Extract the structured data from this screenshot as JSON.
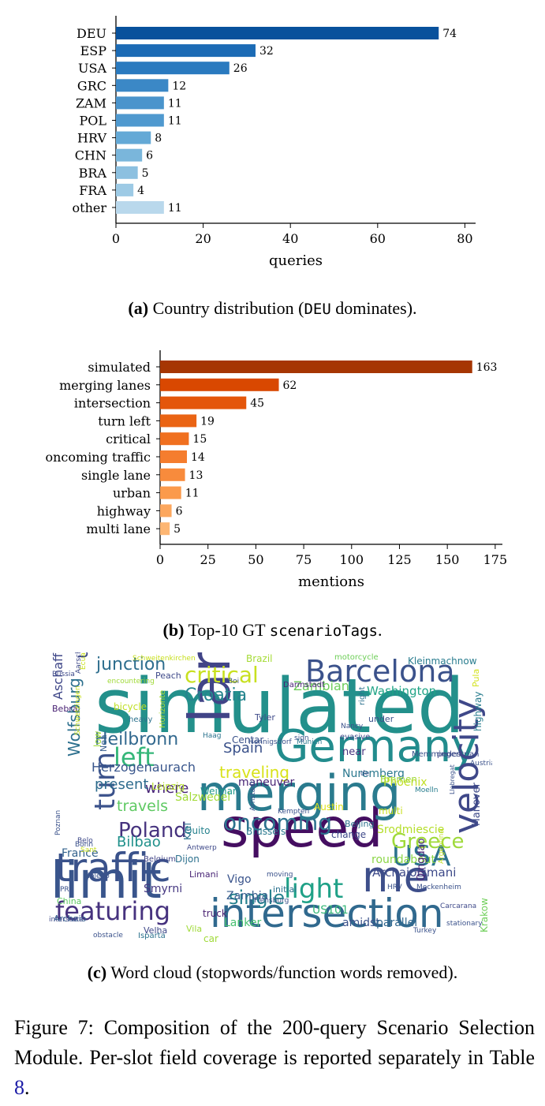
{
  "chart_data": [
    {
      "type": "bar",
      "orientation": "horizontal",
      "categories": [
        "DEU",
        "ESP",
        "USA",
        "GRC",
        "ZAM",
        "POL",
        "HRV",
        "CHN",
        "BRA",
        "FRA",
        "other"
      ],
      "values": [
        74,
        32,
        26,
        12,
        11,
        11,
        8,
        6,
        5,
        4,
        11
      ],
      "xlabel": "queries",
      "xlim": [
        0,
        83
      ],
      "xticks": [
        0,
        20,
        40,
        60,
        80
      ],
      "colors": [
        "#08519c",
        "#1c6bb5",
        "#2a7abf",
        "#3b88c6",
        "#4a94cc",
        "#4f99cf",
        "#64a9d6",
        "#7ab6db",
        "#8cc0e0",
        "#9dcae5",
        "#b9d8ec"
      ]
    },
    {
      "type": "bar",
      "orientation": "horizontal",
      "categories": [
        "simulated",
        "merging lanes",
        "intersection",
        "turn left",
        "critical",
        "oncoming traffic",
        "single lane",
        "urban",
        "highway",
        "multi lane"
      ],
      "values": [
        163,
        62,
        45,
        19,
        15,
        14,
        13,
        11,
        6,
        5
      ],
      "xlabel": "mentions",
      "xlim": [
        0,
        180
      ],
      "xticks": [
        0,
        25,
        50,
        75,
        100,
        125,
        150,
        175
      ],
      "colors": [
        "#a63603",
        "#d94801",
        "#e4560b",
        "#ea6414",
        "#f07020",
        "#f57d2e",
        "#f88b3c",
        "#fb9a4c",
        "#fca75e",
        "#fdb673"
      ]
    }
  ],
  "captions": {
    "a_label": "(a)",
    "a_text_pre": " Country distribution (",
    "a_code": "DEU",
    "a_text_post": " dominates).",
    "b_label": "(b)",
    "b_text_pre": " Top-10 GT ",
    "b_code": "scenarioTags",
    "b_text_post": ".",
    "c_label": "(c)",
    "c_text": " Word cloud (stopwords/function words removed)."
  },
  "figure_caption": {
    "text": "Figure 7: Composition of the 200-query Scenario Selection Module. Per-slot field coverage is reported separately in Table ",
    "ref": "8",
    "end": "."
  },
  "wordcloud": [
    {
      "text": "simulated",
      "color": "#23908b"
    },
    {
      "text": "lane",
      "color": "#414487"
    },
    {
      "text": "speed",
      "color": "#450e61"
    },
    {
      "text": "merging",
      "color": "#2a7b8e"
    },
    {
      "text": "Germany",
      "color": "#228c8d"
    },
    {
      "text": "limit",
      "color": "#39558c"
    },
    {
      "text": "intersection",
      "color": "#30698e"
    },
    {
      "text": "traffic",
      "color": "#3a528b"
    },
    {
      "text": "me",
      "color": "#3d4e8a"
    },
    {
      "text": "velocity",
      "color": "#3f4889"
    },
    {
      "text": "Barcelona",
      "color": "#3b528b"
    },
    {
      "text": "featuring",
      "color": "#46327e"
    },
    {
      "text": "light",
      "color": "#1fa187"
    },
    {
      "text": "oncoming",
      "color": "#2c728e"
    },
    {
      "text": "USA",
      "color": "#2c738e"
    },
    {
      "text": "turn",
      "color": "#3b528b"
    },
    {
      "text": "Poland",
      "color": "#46337e"
    },
    {
      "text": "left",
      "color": "#35b779"
    },
    {
      "text": "critical",
      "color": "#c8e020"
    },
    {
      "text": "Greece",
      "color": "#9fda3a"
    },
    {
      "text": "single",
      "color": "#26828e"
    },
    {
      "text": "Croatia",
      "color": "#25848e"
    },
    {
      "text": "Heilbronn",
      "color": "#31688e"
    },
    {
      "text": "junction",
      "color": "#2e6e8e"
    },
    {
      "text": "traveling",
      "color": "#d8e219"
    },
    {
      "text": "urban",
      "color": "#3e4989"
    },
    {
      "text": "Spain",
      "color": "#3b528b"
    },
    {
      "text": "travels",
      "color": "#5ec962"
    },
    {
      "text": "where",
      "color": "#482576"
    },
    {
      "text": "Bilbao",
      "color": "#21918c"
    },
    {
      "text": "Wolfsburg",
      "color": "#2d708e"
    },
    {
      "text": "Aschaffenburg",
      "color": "#3f4788"
    },
    {
      "text": "Herzogenaurach",
      "color": "#39568c"
    },
    {
      "text": "Washington",
      "color": "#20a486"
    },
    {
      "text": "Zambian",
      "color": "#6ccd5a"
    },
    {
      "text": "Nuremberg",
      "color": "#2a788e"
    },
    {
      "text": "Phoenix",
      "color": "#c2df23"
    },
    {
      "text": "Salzwedel",
      "color": "#a2da37"
    },
    {
      "text": "present",
      "color": "#2f6c8e"
    },
    {
      "text": "maneuver",
      "color": "#482475"
    },
    {
      "text": "Srodmiescie",
      "color": "#b5de2b"
    },
    {
      "text": "ArchaioLimani",
      "color": "#3e4a89"
    },
    {
      "text": "roundabout",
      "color": "#8bd646"
    },
    {
      "text": "Zambia",
      "color": "#365c8d"
    },
    {
      "text": "US101",
      "color": "#37b878"
    },
    {
      "text": "Lanker",
      "color": "#46c06f"
    },
    {
      "text": "amidst",
      "color": "#3b528b"
    },
    {
      "text": "parallel",
      "color": "#31688e"
    },
    {
      "text": "Qingdao",
      "color": "#482677"
    },
    {
      "text": "Kiel",
      "color": "#2c718e"
    },
    {
      "text": "Vigo",
      "color": "#3a548c"
    },
    {
      "text": "Smyrni",
      "color": "#453781"
    },
    {
      "text": "truck",
      "color": "#481f70"
    },
    {
      "text": "China",
      "color": "#5ec962"
    },
    {
      "text": "Archaio",
      "color": "#34618d"
    },
    {
      "text": "France",
      "color": "#33628d"
    },
    {
      "text": "Velha",
      "color": "#3f4889"
    },
    {
      "text": "Dijon",
      "color": "#2d718e"
    },
    {
      "text": "Brussels",
      "color": "#2a788e"
    },
    {
      "text": "Quito",
      "color": "#26828e"
    },
    {
      "text": "Weimar",
      "color": "#1f988b"
    },
    {
      "text": "Leipzig",
      "color": "#b5de2b"
    },
    {
      "text": "Centar",
      "color": "#3b528b"
    },
    {
      "text": "near",
      "color": "#46337e"
    },
    {
      "text": "multi",
      "color": "#c8e020"
    },
    {
      "text": "Bremen",
      "color": "#a0da39"
    },
    {
      "text": "change",
      "color": "#3e4989"
    },
    {
      "text": "Beijing",
      "color": "#2c728e"
    },
    {
      "text": "Hanover",
      "color": "#3e4a89"
    },
    {
      "text": "Krakow",
      "color": "#6ece58"
    },
    {
      "text": "highway",
      "color": "#287d8e"
    },
    {
      "text": "Pula",
      "color": "#d2e21b"
    },
    {
      "text": "Brazil",
      "color": "#a5db36"
    },
    {
      "text": "motorcycle",
      "color": "#6ece58"
    },
    {
      "text": "Kleinmachnow",
      "color": "#287c8e"
    },
    {
      "text": "Peach",
      "color": "#3e4989"
    },
    {
      "text": "bicycle",
      "color": "#c0df25"
    },
    {
      "text": "Horizonte",
      "color": "#a8db34"
    },
    {
      "text": "Bebra",
      "color": "#482173"
    },
    {
      "text": "heavy",
      "color": "#2c728e"
    },
    {
      "text": "Darmstadt",
      "color": "#482475"
    },
    {
      "text": "Tyler",
      "color": "#3e4a89"
    },
    {
      "text": "right",
      "color": "#2c718e"
    },
    {
      "text": "under",
      "color": "#3b528b"
    },
    {
      "text": "low",
      "color": "#a0da39"
    },
    {
      "text": "Nea",
      "color": "#365d8d"
    },
    {
      "text": "Haag",
      "color": "#2c738e"
    },
    {
      "text": "Munich",
      "color": "#2a788e"
    },
    {
      "text": "evasive",
      "color": "#3e4989"
    },
    {
      "text": "Nancy",
      "color": "#3b528b"
    },
    {
      "text": "Memmingen",
      "color": "#3b528b"
    },
    {
      "text": "pedestrian",
      "color": "#3e4989"
    },
    {
      "text": "Belgium",
      "color": "#414487"
    },
    {
      "text": "Moelln",
      "color": "#287d8e"
    },
    {
      "text": "Austin",
      "color": "#dde318"
    },
    {
      "text": "Kempten",
      "color": "#3b528b"
    },
    {
      "text": "Arnstadt",
      "color": "#3b528b"
    },
    {
      "text": "Antwerp",
      "color": "#3e4989"
    },
    {
      "text": "moving",
      "color": "#3b528b"
    },
    {
      "text": "initial",
      "color": "#2c728e"
    },
    {
      "text": "Limani",
      "color": "#482475"
    },
    {
      "text": "Flensburg",
      "color": "#3b528b"
    },
    {
      "text": "Toledo",
      "color": "#3b528b"
    },
    {
      "text": "interstate",
      "color": "#3e4989"
    },
    {
      "text": "obstacle",
      "color": "#3b528b"
    },
    {
      "text": "Isparta",
      "color": "#2c728e"
    },
    {
      "text": "car",
      "color": "#a0da39"
    },
    {
      "text": "Vila",
      "color": "#a0da39"
    },
    {
      "text": "Turkey",
      "color": "#3b528b"
    },
    {
      "text": "stationary",
      "color": "#3b528b"
    },
    {
      "text": "Carcarana",
      "color": "#3e4989"
    },
    {
      "text": "Argentina",
      "color": "#c0df25"
    },
    {
      "text": "Meckenheim",
      "color": "#3b528b"
    },
    {
      "text": "Russia",
      "color": "#3e4989"
    },
    {
      "text": "Aarschot",
      "color": "#3e4989"
    },
    {
      "text": "encountering",
      "color": "#a0da39"
    },
    {
      "text": "Schweitenkirchen",
      "color": "#c8e020"
    },
    {
      "text": "Ecuador",
      "color": "#c8e020"
    },
    {
      "text": "Schwetzingen",
      "color": "#c8e020"
    },
    {
      "text": "Hennigsdorf",
      "color": "#3b528b"
    },
    {
      "text": "Llobregat",
      "color": "#3b528b"
    },
    {
      "text": "Bonn",
      "color": "#3b528b"
    },
    {
      "text": "Poznan",
      "color": "#3b528b"
    },
    {
      "text": "Belo",
      "color": "#3e4989"
    },
    {
      "text": "Sant",
      "color": "#c8e020"
    },
    {
      "text": "PRI",
      "color": "#3b528b"
    },
    {
      "text": "HRV",
      "color": "#3b528b"
    },
    {
      "text": "Austria",
      "color": "#3b528b"
    },
    {
      "text": "Boi",
      "color": "#3b528b"
    },
    {
      "text": "sign",
      "color": "#3b528b"
    },
    {
      "text": "de",
      "color": "#3b528b"
    }
  ]
}
